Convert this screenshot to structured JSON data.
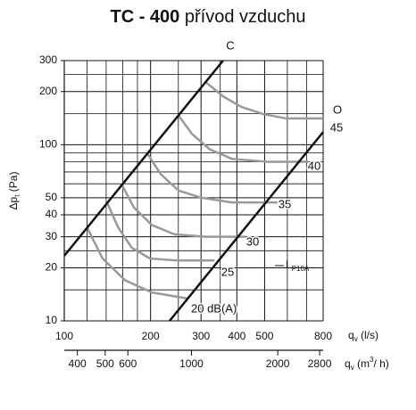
{
  "chart_data": {
    "type": "line",
    "title": {
      "bold": "TC - 400",
      "rest": " přívod vzduchu"
    },
    "y_label": {
      "main": "Δp",
      "sub": "t",
      "unit": " (Pa)"
    },
    "x_label": {
      "main": "q",
      "sub": "v",
      "unit": " (l/s)"
    },
    "x2_label": {
      "main": "q",
      "sub": "v",
      "unit": " (m",
      "sup": "3",
      "unit_end": "/ h)"
    },
    "log_x": true,
    "log_y": true,
    "grid": true,
    "xlim": [
      100,
      800
    ],
    "xticks": [
      100,
      200,
      300,
      400,
      500,
      800
    ],
    "xminor": [
      120,
      140,
      160,
      180,
      250,
      350,
      600,
      700
    ],
    "ylim": [
      10,
      300
    ],
    "yticks": [
      10,
      20,
      30,
      40,
      50,
      100,
      200,
      300
    ],
    "yminor": [
      15,
      25,
      60,
      70,
      80,
      90,
      150,
      250
    ],
    "x2lim": [
      360,
      2880
    ],
    "x2ticks": [
      400,
      500,
      600,
      1000,
      2000,
      2800
    ],
    "lines": [
      {
        "name": "C",
        "color": "#111111",
        "x": [
          100,
          358
        ],
        "values": [
          23.4,
          300
        ]
      },
      {
        "name": "O",
        "color": "#111111",
        "x": [
          233,
          800
        ],
        "values": [
          10,
          118
        ]
      }
    ],
    "series": [
      {
        "name": "45",
        "color": "#999999",
        "x": [
          311,
          358,
          414,
          495,
          593,
          800
        ],
        "values": [
          227,
          188,
          164,
          149,
          141,
          141
        ]
      },
      {
        "name": "40",
        "color": "#999999",
        "x": [
          250,
          279,
          322,
          385,
          513,
          709
        ],
        "values": [
          147,
          115,
          94,
          83,
          80,
          80
        ]
      },
      {
        "name": "35",
        "color": "#999999",
        "x": [
          195,
          217,
          250,
          300,
          385,
          571
        ],
        "values": [
          89,
          68,
          55,
          50,
          47,
          47
        ]
      },
      {
        "name": "30",
        "color": "#999999",
        "x": [
          159,
          175,
          202,
          242,
          311,
          429
        ],
        "values": [
          59,
          44,
          35,
          31,
          30,
          30
        ]
      },
      {
        "name": "25",
        "color": "#999999",
        "x": [
          141,
          154,
          172,
          199,
          250,
          334
        ],
        "values": [
          47,
          34,
          26,
          22.6,
          22,
          22
        ]
      },
      {
        "name": "20 dB(A)",
        "color": "#999999",
        "x": [
          120,
          136,
          163,
          202,
          269
        ],
        "values": [
          34,
          22.6,
          17,
          14.5,
          13.4
        ]
      }
    ],
    "annotation": {
      "main": "L",
      "sub": "P10A"
    }
  }
}
